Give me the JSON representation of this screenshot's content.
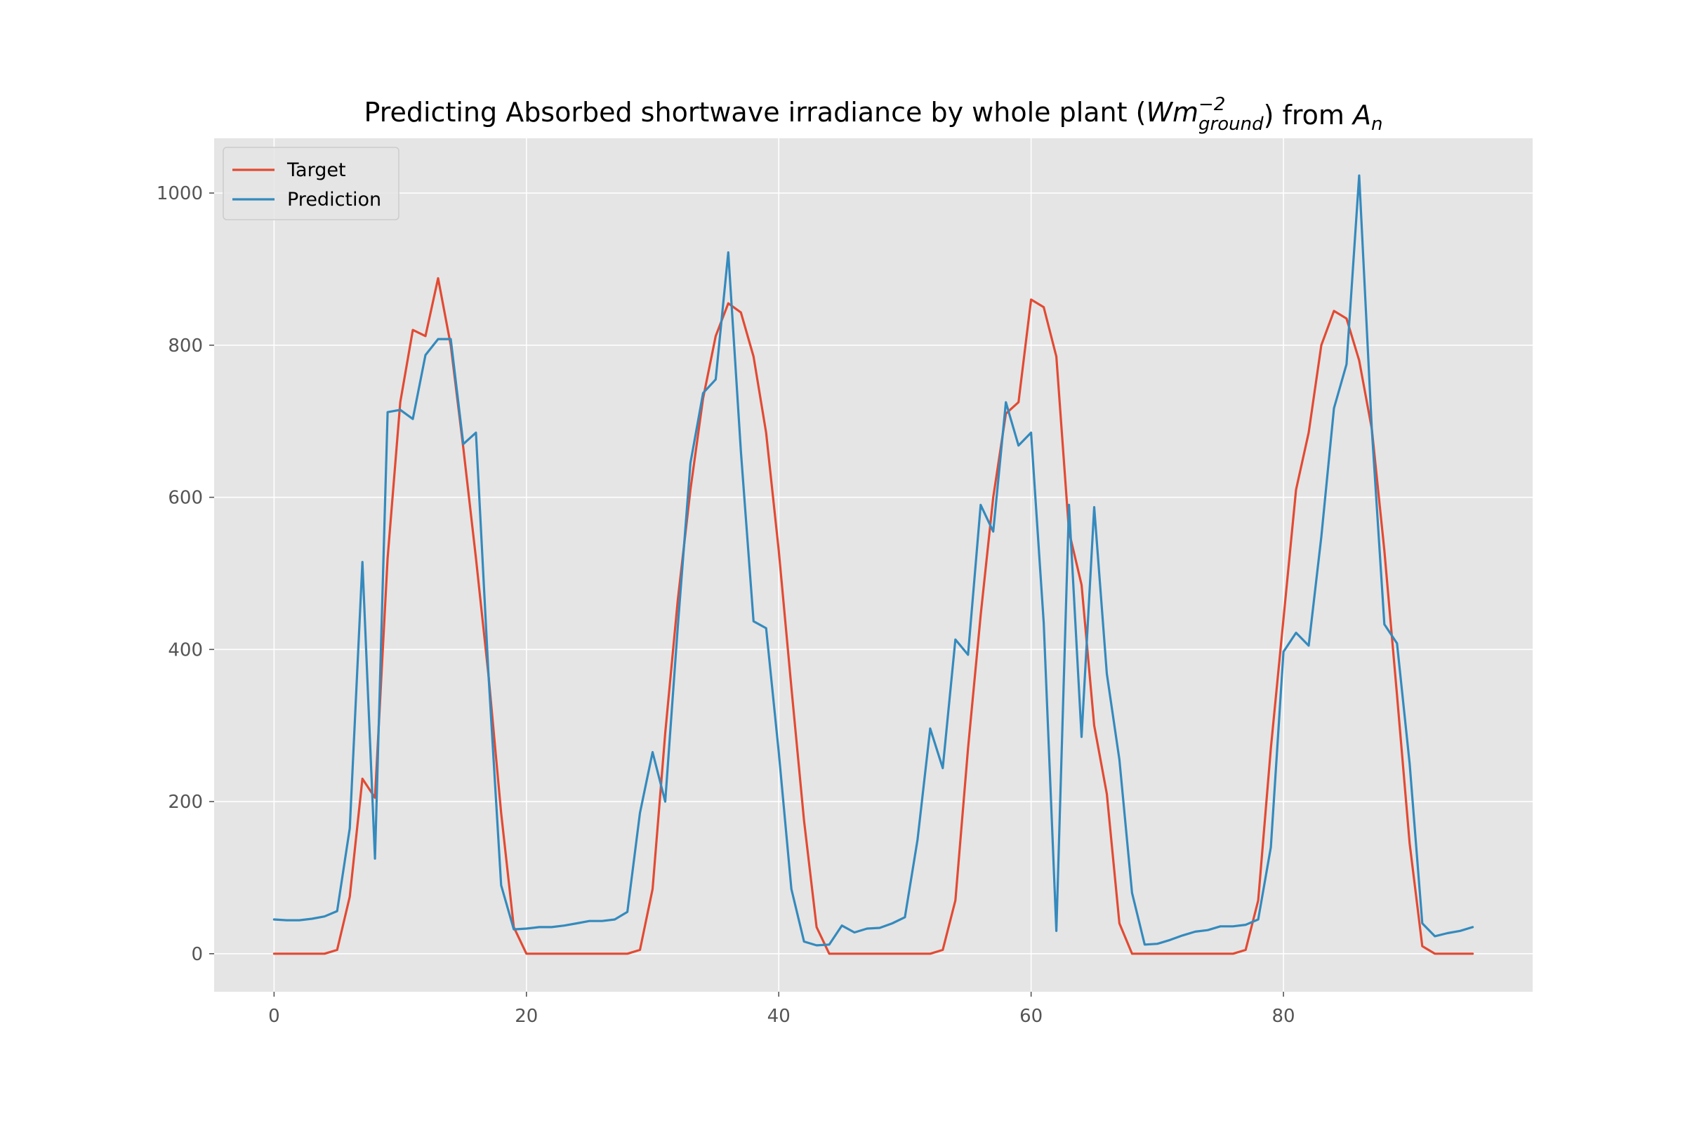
{
  "chart_data": {
    "type": "line",
    "title": {
      "main": "Predicting Absorbed shortwave irradiance by whole plant (",
      "var": "Wm",
      "sup": "−2",
      "sub": "ground",
      "mid": ") from ",
      "var2": "A",
      "sub2": "n"
    },
    "xlabel": "",
    "ylabel": "",
    "xlim": [
      -4.75,
      99.75
    ],
    "ylim": [
      -50,
      1072
    ],
    "xticks": [
      0,
      20,
      40,
      60,
      80
    ],
    "yticks": [
      0,
      200,
      400,
      600,
      800,
      1000
    ],
    "grid": true,
    "legend": {
      "placement": "top-left"
    },
    "x": [
      0,
      1,
      2,
      3,
      4,
      5,
      6,
      7,
      8,
      9,
      10,
      11,
      12,
      13,
      14,
      15,
      16,
      17,
      18,
      19,
      20,
      21,
      22,
      23,
      24,
      25,
      26,
      27,
      28,
      29,
      30,
      31,
      32,
      33,
      34,
      35,
      36,
      37,
      38,
      39,
      40,
      41,
      42,
      43,
      44,
      45,
      46,
      47,
      48,
      49,
      50,
      51,
      52,
      53,
      54,
      55,
      56,
      57,
      58,
      59,
      60,
      61,
      62,
      63,
      64,
      65,
      66,
      67,
      68,
      69,
      70,
      71,
      72,
      73,
      74,
      75,
      76,
      77,
      78,
      79,
      80,
      81,
      82,
      83,
      84,
      85,
      86,
      87,
      88,
      89,
      90,
      91,
      92,
      93,
      94,
      95
    ],
    "series": [
      {
        "name": "Target",
        "color": "#E24A33",
        "values": [
          0,
          0,
          0,
          0,
          0,
          5,
          75,
          230,
          205,
          520,
          725,
          820,
          812,
          888,
          800,
          665,
          520,
          365,
          185,
          35,
          0,
          0,
          0,
          0,
          0,
          0,
          0,
          0,
          0,
          5,
          85,
          290,
          465,
          610,
          730,
          812,
          855,
          843,
          785,
          685,
          530,
          350,
          175,
          35,
          0,
          0,
          0,
          0,
          0,
          0,
          0,
          0,
          0,
          5,
          70,
          270,
          445,
          600,
          710,
          725,
          860,
          850,
          785,
          555,
          485,
          300,
          210,
          40,
          0,
          0,
          0,
          0,
          0,
          0,
          0,
          0,
          0,
          5,
          70,
          270,
          440,
          610,
          685,
          800,
          845,
          835,
          780,
          690,
          530,
          340,
          145,
          10,
          0,
          0,
          0,
          0
        ]
      },
      {
        "name": "Prediction",
        "color": "#348ABD",
        "values": [
          45,
          44,
          44,
          46,
          49,
          56,
          165,
          515,
          125,
          712,
          715,
          703,
          787,
          808,
          808,
          670,
          685,
          365,
          90,
          32,
          33,
          35,
          35,
          37,
          40,
          43,
          43,
          45,
          55,
          185,
          265,
          200,
          430,
          645,
          737,
          755,
          922,
          660,
          437,
          428,
          265,
          85,
          16,
          11,
          12,
          37,
          28,
          33,
          34,
          40,
          48,
          150,
          296,
          244,
          413,
          393,
          590,
          555,
          725,
          668,
          685,
          435,
          30,
          590,
          285,
          587,
          368,
          255,
          80,
          12,
          13,
          18,
          24,
          29,
          31,
          36,
          36,
          38,
          45,
          140,
          397,
          422,
          405,
          548,
          717,
          775,
          1023,
          690,
          433,
          408,
          250,
          40,
          23,
          27,
          30,
          35
        ]
      }
    ]
  }
}
